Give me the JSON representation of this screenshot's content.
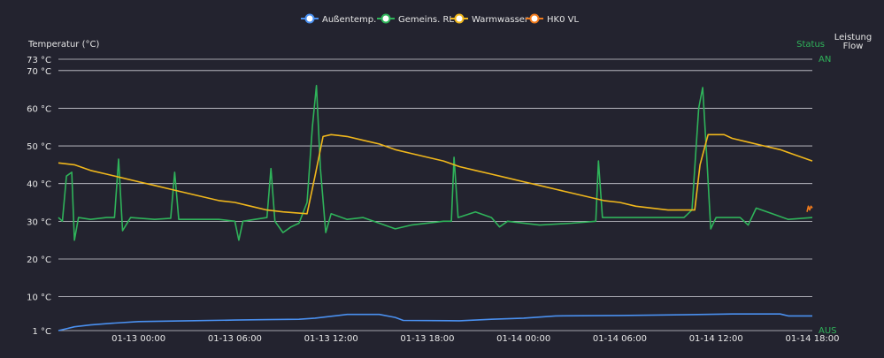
{
  "chart_data": {
    "type": "line",
    "legend": [
      "Außentemp.",
      "Gemeins. RL",
      "Warmwasser",
      "HK0 VL"
    ],
    "legend_placement": "top-center",
    "ylabel_left": "Temperatur (°C)",
    "right_axis_title_status": "Status",
    "right_axis_title_leistung": "Leistung",
    "right_axis_title_flow": "Flow",
    "right_tick_top": "AN",
    "right_tick_bottom": "AUS",
    "ylim": [
      1,
      73
    ],
    "y_ticks": [
      {
        "value": 73,
        "label": "73 °C"
      },
      {
        "value": 70,
        "label": "70 °C"
      },
      {
        "value": 60,
        "label": "60 °C"
      },
      {
        "value": 50,
        "label": "50 °C"
      },
      {
        "value": 40,
        "label": "40 °C"
      },
      {
        "value": 30,
        "label": "30 °C"
      },
      {
        "value": 20,
        "label": "20 °C"
      },
      {
        "value": 10,
        "label": "10 °C"
      },
      {
        "value": 1,
        "label": "1 °C"
      }
    ],
    "x_range": [
      "2025-01-12 19:00",
      "2025-01-14 18:00"
    ],
    "x_ticks": [
      {
        "time": "2025-01-13 00:00",
        "label": "01-13 00:00"
      },
      {
        "time": "2025-01-13 06:00",
        "label": "01-13 06:00"
      },
      {
        "time": "2025-01-13 12:00",
        "label": "01-13 12:00"
      },
      {
        "time": "2025-01-13 18:00",
        "label": "01-13 18:00"
      },
      {
        "time": "2025-01-14 00:00",
        "label": "01-14 00:00"
      },
      {
        "time": "2025-01-14 06:00",
        "label": "01-14 06:00"
      },
      {
        "time": "2025-01-14 12:00",
        "label": "01-14 12:00"
      },
      {
        "time": "2025-01-14 18:00",
        "label": "01-14 18:00"
      }
    ],
    "grid": true,
    "series": [
      {
        "name": "Außentemp.",
        "color": "#4a90f0",
        "points": [
          [
            "2025-01-12 19:00",
            1.0
          ],
          [
            "2025-01-12 19:30",
            1.5
          ],
          [
            "2025-01-12 20:00",
            2.0
          ],
          [
            "2025-01-12 21:00",
            2.5
          ],
          [
            "2025-01-12 22:30",
            3.0
          ],
          [
            "2025-01-13 00:00",
            3.4
          ],
          [
            "2025-01-13 03:00",
            3.6
          ],
          [
            "2025-01-13 06:00",
            3.8
          ],
          [
            "2025-01-13 08:00",
            3.9
          ],
          [
            "2025-01-13 10:00",
            4.0
          ],
          [
            "2025-01-13 11:00",
            4.3
          ],
          [
            "2025-01-13 12:00",
            4.8
          ],
          [
            "2025-01-13 13:00",
            5.3
          ],
          [
            "2025-01-13 15:00",
            5.3
          ],
          [
            "2025-01-13 16:00",
            4.5
          ],
          [
            "2025-01-13 16:30",
            3.7
          ],
          [
            "2025-01-13 20:00",
            3.6
          ],
          [
            "2025-01-13 22:00",
            4.0
          ],
          [
            "2025-01-14 00:00",
            4.3
          ],
          [
            "2025-01-14 02:00",
            4.9
          ],
          [
            "2025-01-14 06:00",
            5.0
          ],
          [
            "2025-01-14 10:00",
            5.2
          ],
          [
            "2025-01-14 13:00",
            5.4
          ],
          [
            "2025-01-14 16:00",
            5.4
          ],
          [
            "2025-01-14 16:30",
            4.9
          ],
          [
            "2025-01-14 18:00",
            4.9
          ]
        ]
      },
      {
        "name": "Gemeins. RL",
        "color": "#2fb35a",
        "points": [
          [
            "2025-01-12 19:00",
            31.0
          ],
          [
            "2025-01-12 19:15",
            30.0
          ],
          [
            "2025-01-12 19:30",
            42.0
          ],
          [
            "2025-01-12 19:50",
            43.0
          ],
          [
            "2025-01-12 20:00",
            25.0
          ],
          [
            "2025-01-12 20:15",
            31.0
          ],
          [
            "2025-01-12 21:00",
            30.5
          ],
          [
            "2025-01-12 22:00",
            31.0
          ],
          [
            "2025-01-12 22:30",
            31.0
          ],
          [
            "2025-01-12 22:45",
            46.5
          ],
          [
            "2025-01-12 23:00",
            27.5
          ],
          [
            "2025-01-12 23:30",
            31.0
          ],
          [
            "2025-01-13 01:00",
            30.5
          ],
          [
            "2025-01-13 02:00",
            30.8
          ],
          [
            "2025-01-13 02:15",
            43.0
          ],
          [
            "2025-01-13 02:30",
            30.5
          ],
          [
            "2025-01-13 05:00",
            30.5
          ],
          [
            "2025-01-13 06:00",
            30.0
          ],
          [
            "2025-01-13 06:15",
            25.0
          ],
          [
            "2025-01-13 06:30",
            30.0
          ],
          [
            "2025-01-13 08:00",
            31.0
          ],
          [
            "2025-01-13 08:15",
            44.0
          ],
          [
            "2025-01-13 08:30",
            30.0
          ],
          [
            "2025-01-13 09:00",
            27.0
          ],
          [
            "2025-01-13 09:30",
            28.5
          ],
          [
            "2025-01-13 10:00",
            29.5
          ],
          [
            "2025-01-13 10:30",
            35.0
          ],
          [
            "2025-01-13 10:50",
            55.0
          ],
          [
            "2025-01-13 11:05",
            66.0
          ],
          [
            "2025-01-13 11:20",
            44.0
          ],
          [
            "2025-01-13 11:40",
            27.0
          ],
          [
            "2025-01-13 12:00",
            32.0
          ],
          [
            "2025-01-13 13:00",
            30.5
          ],
          [
            "2025-01-13 14:00",
            31.0
          ],
          [
            "2025-01-13 15:00",
            29.5
          ],
          [
            "2025-01-13 16:00",
            28.0
          ],
          [
            "2025-01-13 17:00",
            29.0
          ],
          [
            "2025-01-13 19:00",
            30.0
          ],
          [
            "2025-01-13 19:30",
            30.0
          ],
          [
            "2025-01-13 19:40",
            47.0
          ],
          [
            "2025-01-13 19:55",
            31.0
          ],
          [
            "2025-01-13 21:00",
            32.5
          ],
          [
            "2025-01-13 22:00",
            31.0
          ],
          [
            "2025-01-13 22:30",
            28.5
          ],
          [
            "2025-01-13 23:00",
            30.0
          ],
          [
            "2025-01-14 01:00",
            29.0
          ],
          [
            "2025-01-14 03:00",
            29.5
          ],
          [
            "2025-01-14 04:30",
            30.0
          ],
          [
            "2025-01-14 04:40",
            46.0
          ],
          [
            "2025-01-14 04:55",
            31.0
          ],
          [
            "2025-01-14 06:00",
            31.0
          ],
          [
            "2025-01-14 08:00",
            31.0
          ],
          [
            "2025-01-14 10:00",
            31.0
          ],
          [
            "2025-01-14 10:30",
            33.0
          ],
          [
            "2025-01-14 10:55",
            60.0
          ],
          [
            "2025-01-14 11:10",
            65.5
          ],
          [
            "2025-01-14 11:25",
            47.0
          ],
          [
            "2025-01-14 11:40",
            28.0
          ],
          [
            "2025-01-14 12:00",
            31.0
          ],
          [
            "2025-01-14 13:30",
            31.0
          ],
          [
            "2025-01-14 14:00",
            29.0
          ],
          [
            "2025-01-14 14:30",
            33.5
          ],
          [
            "2025-01-14 15:30",
            32.0
          ],
          [
            "2025-01-14 16:30",
            30.5
          ],
          [
            "2025-01-14 18:00",
            31.0
          ]
        ]
      },
      {
        "name": "Warmwasser",
        "color": "#f0b71c",
        "points": [
          [
            "2025-01-12 19:00",
            45.5
          ],
          [
            "2025-01-12 20:00",
            45.0
          ],
          [
            "2025-01-12 21:00",
            43.5
          ],
          [
            "2025-01-12 22:00",
            42.5
          ],
          [
            "2025-01-12 23:00",
            41.5
          ],
          [
            "2025-01-13 00:00",
            40.5
          ],
          [
            "2025-01-13 01:00",
            39.5
          ],
          [
            "2025-01-13 02:00",
            38.5
          ],
          [
            "2025-01-13 03:00",
            37.5
          ],
          [
            "2025-01-13 04:00",
            36.5
          ],
          [
            "2025-01-13 05:00",
            35.5
          ],
          [
            "2025-01-13 06:00",
            35.0
          ],
          [
            "2025-01-13 07:00",
            34.0
          ],
          [
            "2025-01-13 08:00",
            33.0
          ],
          [
            "2025-01-13 09:00",
            32.5
          ],
          [
            "2025-01-13 10:30",
            32.0
          ],
          [
            "2025-01-13 11:00",
            42.0
          ],
          [
            "2025-01-13 11:30",
            52.5
          ],
          [
            "2025-01-13 12:00",
            53.0
          ],
          [
            "2025-01-13 13:00",
            52.5
          ],
          [
            "2025-01-13 14:00",
            51.5
          ],
          [
            "2025-01-13 15:00",
            50.5
          ],
          [
            "2025-01-13 16:00",
            49.0
          ],
          [
            "2025-01-13 17:00",
            48.0
          ],
          [
            "2025-01-13 18:00",
            47.0
          ],
          [
            "2025-01-13 19:00",
            46.0
          ],
          [
            "2025-01-13 20:00",
            44.5
          ],
          [
            "2025-01-13 21:00",
            43.5
          ],
          [
            "2025-01-13 22:00",
            42.5
          ],
          [
            "2025-01-13 23:00",
            41.5
          ],
          [
            "2025-01-14 00:00",
            40.5
          ],
          [
            "2025-01-14 01:00",
            39.5
          ],
          [
            "2025-01-14 02:00",
            38.5
          ],
          [
            "2025-01-14 03:00",
            37.5
          ],
          [
            "2025-01-14 04:00",
            36.5
          ],
          [
            "2025-01-14 05:00",
            35.5
          ],
          [
            "2025-01-14 06:00",
            35.0
          ],
          [
            "2025-01-14 07:00",
            34.0
          ],
          [
            "2025-01-14 08:00",
            33.5
          ],
          [
            "2025-01-14 09:00",
            33.0
          ],
          [
            "2025-01-14 10:00",
            33.0
          ],
          [
            "2025-01-14 10:40",
            33.0
          ],
          [
            "2025-01-14 11:00",
            45.0
          ],
          [
            "2025-01-14 11:30",
            53.0
          ],
          [
            "2025-01-14 12:30",
            53.0
          ],
          [
            "2025-01-14 13:00",
            52.0
          ],
          [
            "2025-01-14 14:00",
            51.0
          ],
          [
            "2025-01-14 15:00",
            50.0
          ],
          [
            "2025-01-14 16:00",
            49.0
          ],
          [
            "2025-01-14 17:00",
            47.5
          ],
          [
            "2025-01-14 18:00",
            46.0
          ]
        ]
      },
      {
        "name": "HK0 VL",
        "color": "#f07a1c",
        "points": [
          [
            "2025-01-14 17:40",
            32.5
          ],
          [
            "2025-01-14 17:45",
            34.0
          ],
          [
            "2025-01-14 17:50",
            33.0
          ],
          [
            "2025-01-14 17:55",
            34.0
          ],
          [
            "2025-01-14 18:00",
            33.5
          ]
        ]
      }
    ]
  }
}
